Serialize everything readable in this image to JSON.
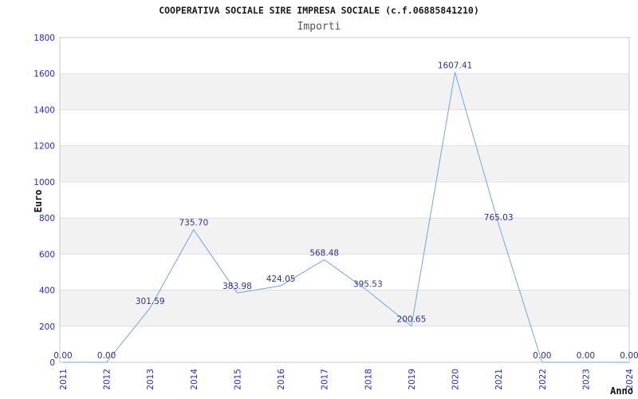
{
  "chart_data": {
    "type": "line",
    "title": "COOPERATIVA SOCIALE SIRE IMPRESA SOCIALE (c.f.06885841210)",
    "subtitle": "Importi",
    "xlabel": "Anno",
    "ylabel": "Euro",
    "categories": [
      "2011",
      "2012",
      "2013",
      "2014",
      "2015",
      "2016",
      "2017",
      "2018",
      "2019",
      "2020",
      "2021",
      "2022",
      "2023",
      "2024"
    ],
    "values": [
      0.0,
      0.0,
      301.59,
      735.7,
      383.98,
      424.05,
      568.48,
      395.53,
      200.65,
      1607.41,
      765.03,
      0.0,
      0.0,
      0.0
    ],
    "point_labels": [
      "0.00",
      "0.00",
      "301.59",
      "735.70",
      "383.98",
      "424.05",
      "568.48",
      "395.53",
      "200.65",
      "1607.41",
      "765.03",
      "0.00",
      "0.00",
      "0.00"
    ],
    "ylim": [
      0,
      1800
    ],
    "ytick_step": 200,
    "ytick_labels": [
      "0",
      "200",
      "400",
      "600",
      "800",
      "1000",
      "1200",
      "1400",
      "1600",
      "1800"
    ],
    "grid": "horizontal-bands-alternating",
    "legend_position": "none",
    "colors": {
      "line": "#74a7da",
      "tick_labels": "#2828cc",
      "point_labels": "#333388",
      "band_fill": "#f2f2f2",
      "band_alt_fill": "#ffffff",
      "grid_line": "#e0e0e0",
      "plot_border": "#c8c8c8",
      "title": "#1a1a1a",
      "subtitle": "#555555",
      "axis_titles": "#111111",
      "background": "#ffffff"
    }
  }
}
